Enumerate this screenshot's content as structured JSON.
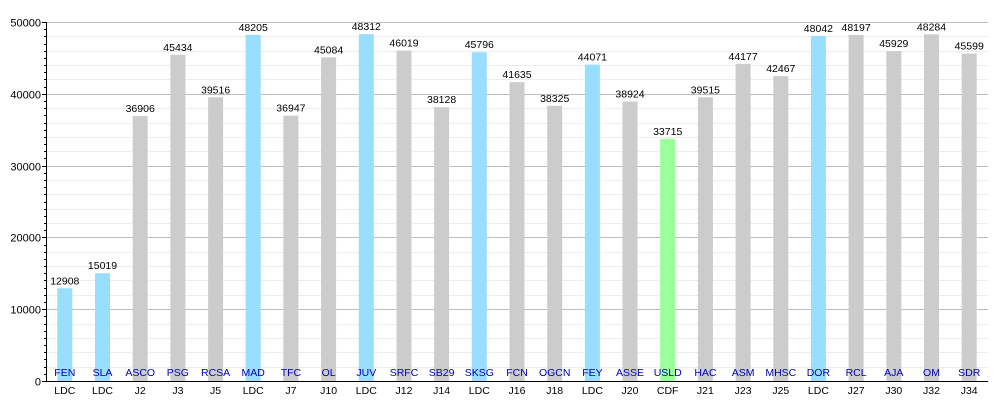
{
  "chart_data": {
    "type": "bar",
    "yticks": [
      0,
      10000,
      20000,
      30000,
      40000,
      50000
    ],
    "ylim": [
      0,
      50000
    ],
    "grid": true,
    "colors": {
      "LDC": "#99ddff",
      "CDF": "#99ff99",
      "league": "#cccccc"
    },
    "bars": [
      {
        "team": "FEN",
        "round": "LDC",
        "value": 12908
      },
      {
        "team": "SLA",
        "round": "LDC",
        "value": 15019
      },
      {
        "team": "ASCO",
        "round": "J2",
        "value": 36906
      },
      {
        "team": "PSG",
        "round": "J3",
        "value": 45434
      },
      {
        "team": "RCSA",
        "round": "J5",
        "value": 39516
      },
      {
        "team": "MAD",
        "round": "LDC",
        "value": 48205
      },
      {
        "team": "TFC",
        "round": "J7",
        "value": 36947
      },
      {
        "team": "OL",
        "round": "J10",
        "value": 45084
      },
      {
        "team": "JUV",
        "round": "LDC",
        "value": 48312
      },
      {
        "team": "SRFC",
        "round": "J12",
        "value": 46019
      },
      {
        "team": "SB29",
        "round": "J14",
        "value": 38128
      },
      {
        "team": "SKSG",
        "round": "LDC",
        "value": 45796
      },
      {
        "team": "FCN",
        "round": "J16",
        "value": 41635
      },
      {
        "team": "OGCN",
        "round": "J18",
        "value": 38325
      },
      {
        "team": "FEY",
        "round": "LDC",
        "value": 44071
      },
      {
        "team": "ASSE",
        "round": "J20",
        "value": 38924
      },
      {
        "team": "USLD",
        "round": "CDF",
        "value": 33715
      },
      {
        "team": "HAC",
        "round": "J21",
        "value": 39515
      },
      {
        "team": "ASM",
        "round": "J23",
        "value": 44177
      },
      {
        "team": "MHSC",
        "round": "J25",
        "value": 42467
      },
      {
        "team": "DOR",
        "round": "LDC",
        "value": 48042
      },
      {
        "team": "RCL",
        "round": "J27",
        "value": 48197
      },
      {
        "team": "AJA",
        "round": "J30",
        "value": 45929
      },
      {
        "team": "OM",
        "round": "J32",
        "value": 48284
      },
      {
        "team": "SDR",
        "round": "J34",
        "value": 45599
      }
    ]
  }
}
